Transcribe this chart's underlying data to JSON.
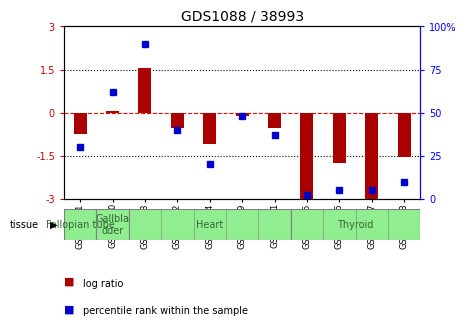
{
  "title": "GDS1088 / 38993",
  "samples": [
    "GSM39991",
    "GSM40000",
    "GSM39993",
    "GSM39992",
    "GSM39994",
    "GSM39999",
    "GSM40001",
    "GSM39995",
    "GSM39996",
    "GSM39997",
    "GSM39998"
  ],
  "log_ratio": [
    -0.75,
    0.05,
    1.55,
    -0.55,
    -1.1,
    -0.12,
    -0.55,
    -3.0,
    -1.75,
    -3.0,
    -1.55
  ],
  "percentile_rank": [
    30,
    62,
    90,
    40,
    20,
    48,
    37,
    2,
    5,
    5,
    10
  ],
  "tissues": [
    {
      "label": "Fallopian tube",
      "start": 0,
      "end": 1
    },
    {
      "label": "Gallbla\ndder",
      "start": 1,
      "end": 2
    },
    {
      "label": "Heart",
      "start": 2,
      "end": 7
    },
    {
      "label": "Thyroid",
      "start": 7,
      "end": 11
    }
  ],
  "tissue_borders": [
    0,
    1,
    2,
    7,
    11
  ],
  "bar_color": "#AA0000",
  "dot_color": "#0000CC",
  "ylim_left": [
    -3,
    3
  ],
  "ylim_right": [
    0,
    100
  ],
  "yticks_left": [
    -3,
    -1.5,
    0,
    1.5,
    3
  ],
  "yticks_right": [
    0,
    25,
    50,
    75,
    100
  ],
  "hlines_dotted": [
    -1.5,
    1.5
  ],
  "hline_dashed": 0,
  "bg_color": "white",
  "tissue_color": "#90EE90",
  "tissue_text_color": "#336633",
  "title_fontsize": 10,
  "axis_fontsize": 7,
  "sample_fontsize": 6,
  "tissue_fontsize": 7,
  "bar_width": 0.4
}
